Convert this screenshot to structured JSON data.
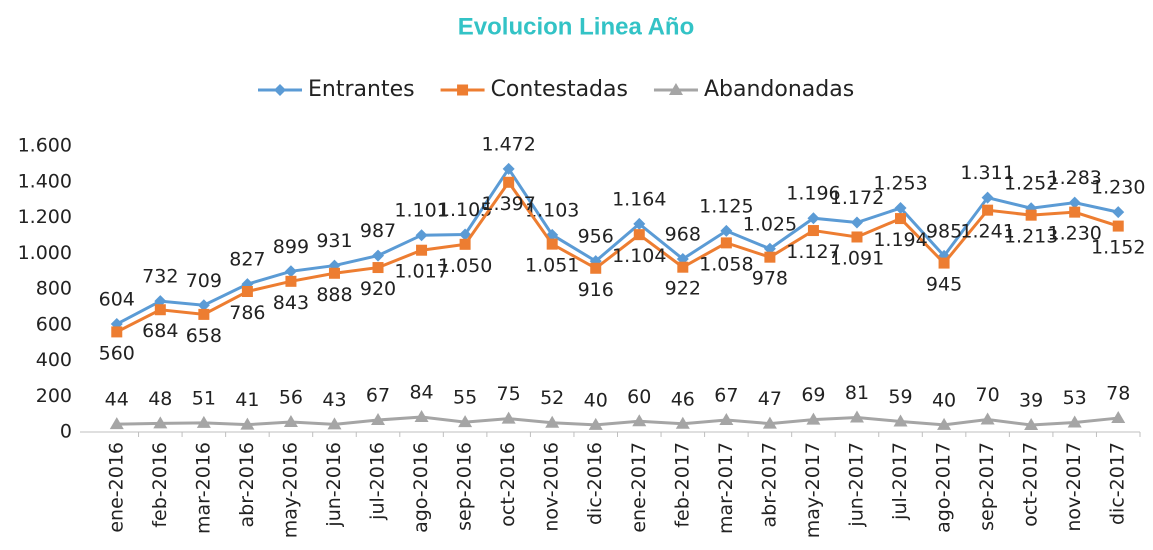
{
  "chart_data": {
    "type": "line",
    "title": "Evolucion Linea Año",
    "categories": [
      "ene-2016",
      "feb-2016",
      "mar-2016",
      "abr-2016",
      "may-2016",
      "jun-2016",
      "jul-2016",
      "ago-2016",
      "sep-2016",
      "oct-2016",
      "nov-2016",
      "dic-2016",
      "ene-2017",
      "feb-2017",
      "mar-2017",
      "abr-2017",
      "may-2017",
      "jun-2017",
      "jul-2017",
      "ago-2017",
      "sep-2017",
      "oct-2017",
      "nov-2017",
      "dic-2017"
    ],
    "series": [
      {
        "name": "Entrantes",
        "color": "#5b9bd5",
        "marker": "diamond",
        "label_position": "above",
        "values": [
          604,
          732,
          709,
          827,
          899,
          931,
          987,
          1101,
          1105,
          1472,
          1103,
          956,
          1164,
          968,
          1125,
          1025,
          1196,
          1172,
          1253,
          985,
          1311,
          1252,
          1283,
          1230
        ],
        "value_labels": [
          "604",
          "732",
          "709",
          "827",
          "899",
          "931",
          "987",
          "1.101",
          "1.105",
          "1.472",
          "1.103",
          "956",
          "1.164",
          "968",
          "1.125",
          "1.025",
          "1.196",
          "1.172",
          "1.253",
          "985",
          "1.311",
          "1.252",
          "1.283",
          "1.230"
        ]
      },
      {
        "name": "Contestadas",
        "color": "#ed7d31",
        "marker": "square",
        "label_position": "below",
        "values": [
          560,
          684,
          658,
          786,
          843,
          888,
          920,
          1017,
          1050,
          1397,
          1051,
          916,
          1104,
          922,
          1058,
          978,
          1127,
          1091,
          1194,
          945,
          1241,
          1213,
          1230,
          1152
        ],
        "value_labels": [
          "560",
          "684",
          "658",
          "786",
          "843",
          "888",
          "920",
          "1.017",
          "1.050",
          "1.397",
          "1.051",
          "916",
          "1.104",
          "922",
          "1.058",
          "978",
          "1.127",
          "1.091",
          "1.194",
          "945",
          "1.241",
          "1.213",
          "1.230",
          "1.152"
        ]
      },
      {
        "name": "Abandonadas",
        "color": "#a5a5a5",
        "marker": "triangle",
        "label_position": "above",
        "values": [
          44,
          48,
          51,
          41,
          56,
          43,
          67,
          84,
          55,
          75,
          52,
          40,
          60,
          46,
          67,
          47,
          69,
          81,
          59,
          40,
          70,
          39,
          53,
          78
        ],
        "value_labels": [
          "44",
          "48",
          "51",
          "41",
          "56",
          "43",
          "67",
          "84",
          "55",
          "75",
          "52",
          "40",
          "60",
          "46",
          "67",
          "47",
          "69",
          "81",
          "59",
          "40",
          "70",
          "39",
          "53",
          "78"
        ]
      }
    ],
    "ylim": [
      0,
      1600
    ],
    "yticks": [
      0,
      200,
      400,
      600,
      800,
      {
        "value": 1000,
        "label": "1.000"
      },
      {
        "value": 1200,
        "label": "1.200"
      },
      {
        "value": 1400,
        "label": "1.400"
      },
      {
        "value": 1600,
        "label": "1.600"
      }
    ],
    "grid": false,
    "legend": "top"
  }
}
